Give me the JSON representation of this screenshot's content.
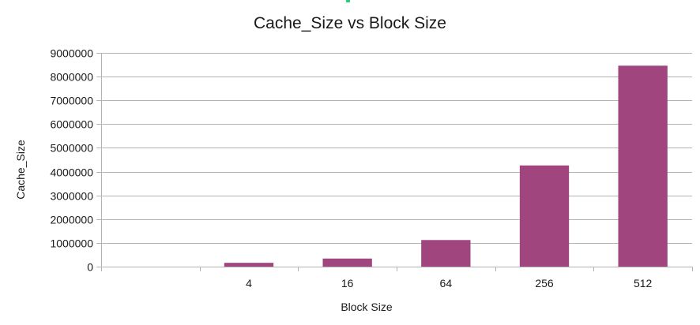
{
  "colors": {
    "bar": "#a0457e",
    "grid": "#b3b3b3",
    "axis": "#b3b3b3",
    "text": "#1a1a1a"
  },
  "chart_data": {
    "type": "bar",
    "title": "Cache_Size vs Block Size",
    "xlabel": "Block Size",
    "ylabel": "Cache_Size",
    "categories": [
      "",
      "4",
      "16",
      "64",
      "256",
      "512"
    ],
    "values": [
      0,
      160000,
      340000,
      1120000,
      4260000,
      8460000
    ],
    "ylim": [
      0,
      9000000
    ],
    "yticks": [
      0,
      1000000,
      2000000,
      3000000,
      4000000,
      5000000,
      6000000,
      7000000,
      8000000,
      9000000
    ],
    "ytick_labels": [
      "0",
      "1000000",
      "2000000",
      "3000000",
      "4000000",
      "5000000",
      "6000000",
      "7000000",
      "8000000",
      "9000000"
    ],
    "grid": true,
    "legend": "none"
  }
}
